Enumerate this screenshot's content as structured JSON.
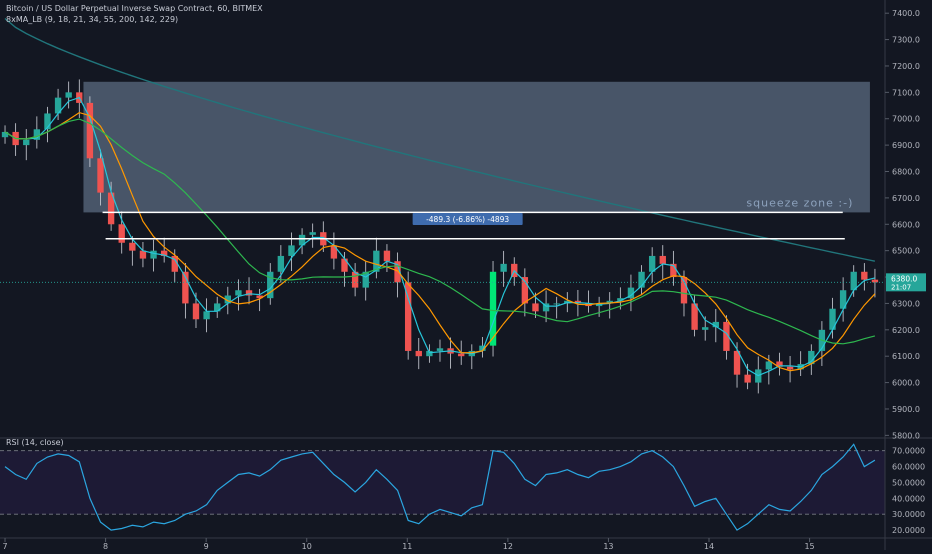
{
  "header": {
    "symbol_line": "Bitcoin / US Dollar Perpetual Inverse Swap Contract, 60, BITMEX",
    "indicator_line": "8xMA_LB (9, 18, 21, 34, 55, 200, 142, 229)"
  },
  "rsi_panel": {
    "label": "RSI (14, close)"
  },
  "colors": {
    "background": "#131722",
    "rsi_background": "#1d1a35",
    "up_candle": "#26a69a",
    "strong_up": "#00e676",
    "down_candle": "#ef5350",
    "ma_fast": "#26c6da",
    "ma_mid": "#ff9800",
    "ma_slow": "#2eb84f",
    "ma_long": "#21757b",
    "zone": "#5b6b80",
    "rsi_line": "#2ba6e0",
    "measure_box": "#3f6cae",
    "last_price": "#26a69a"
  },
  "chart_data": [
    {
      "type": "candlestick",
      "x_ticks": [
        "7",
        "8",
        "9",
        "10",
        "11",
        "12",
        "13",
        "14",
        "15"
      ],
      "y_ticks": [
        "7400.0",
        "7300.0",
        "7200.0",
        "7100.0",
        "7000.0",
        "6900.0",
        "6800.0",
        "6700.0",
        "6600.0",
        "6500.0",
        "6400.0",
        "6300.0",
        "6200.0",
        "6100.0",
        "6000.0",
        "5900.0",
        "5800.0"
      ],
      "ylim": [
        5790,
        7450
      ],
      "x_range": [
        -0.05,
        8.75
      ],
      "closes": [
        6950,
        6900,
        6920,
        6960,
        7020,
        7080,
        7100,
        7060,
        6850,
        6720,
        6600,
        6530,
        6500,
        6470,
        6500,
        6480,
        6420,
        6300,
        6240,
        6270,
        6300,
        6330,
        6350,
        6330,
        6320,
        6420,
        6480,
        6520,
        6560,
        6570,
        6520,
        6470,
        6420,
        6360,
        6420,
        6500,
        6460,
        6380,
        6120,
        6100,
        6120,
        6130,
        6110,
        6100,
        6120,
        6140,
        6420,
        6450,
        6400,
        6300,
        6270,
        6300,
        6300,
        6310,
        6300,
        6290,
        6300,
        6310,
        6320,
        6360,
        6420,
        6480,
        6450,
        6400,
        6300,
        6200,
        6210,
        6230,
        6120,
        6030,
        6000,
        6050,
        6080,
        6060,
        6050,
        6070,
        6120,
        6200,
        6280,
        6350,
        6420,
        6390,
        6380
      ],
      "last_price_label": "6380.0",
      "last_price_sub": "21:07",
      "squeeze_zone": {
        "price_top": 7140,
        "price_bottom": 6645,
        "x_start": 0.78,
        "x_end": 8.6,
        "label": "squeeze zone :-)"
      },
      "resistance_lines": [
        {
          "price": 6645,
          "x_start": 0.97,
          "x_end": 8.33
        },
        {
          "price": 6545,
          "x_start": 1.0,
          "x_end": 8.35
        }
      ],
      "measure_label": {
        "text": "-489.3 (-6.86%) -4893",
        "price": 6620,
        "x_center": 4.6
      },
      "series": [
        {
          "name": "9",
          "color_key": "ma_fast"
        },
        {
          "name": "21",
          "color_key": "ma_mid"
        },
        {
          "name": "55",
          "color_key": "ma_slow"
        },
        {
          "name": "200",
          "color_key": "ma_long"
        }
      ]
    },
    {
      "type": "line",
      "indicator": "RSI (14, close)",
      "y_ticks": [
        "70.0000",
        "60.0000",
        "50.0000",
        "40.0000",
        "30.0000",
        "20.0000"
      ],
      "ylim": [
        15,
        78
      ],
      "upper_band": 70,
      "lower_band": 30,
      "values": [
        60,
        55,
        52,
        62,
        66,
        68,
        67,
        63,
        40,
        25,
        20,
        21,
        23,
        22,
        25,
        24,
        26,
        30,
        32,
        36,
        45,
        50,
        55,
        56,
        54,
        58,
        64,
        66,
        68,
        69,
        62,
        55,
        50,
        44,
        50,
        58,
        52,
        45,
        26,
        24,
        30,
        33,
        31,
        29,
        34,
        36,
        70,
        69,
        62,
        52,
        48,
        55,
        56,
        58,
        55,
        53,
        57,
        58,
        60,
        63,
        68,
        70,
        66,
        60,
        48,
        35,
        38,
        40,
        30,
        20,
        24,
        30,
        36,
        33,
        32,
        38,
        45,
        55,
        60,
        66,
        74,
        60,
        64
      ]
    }
  ]
}
